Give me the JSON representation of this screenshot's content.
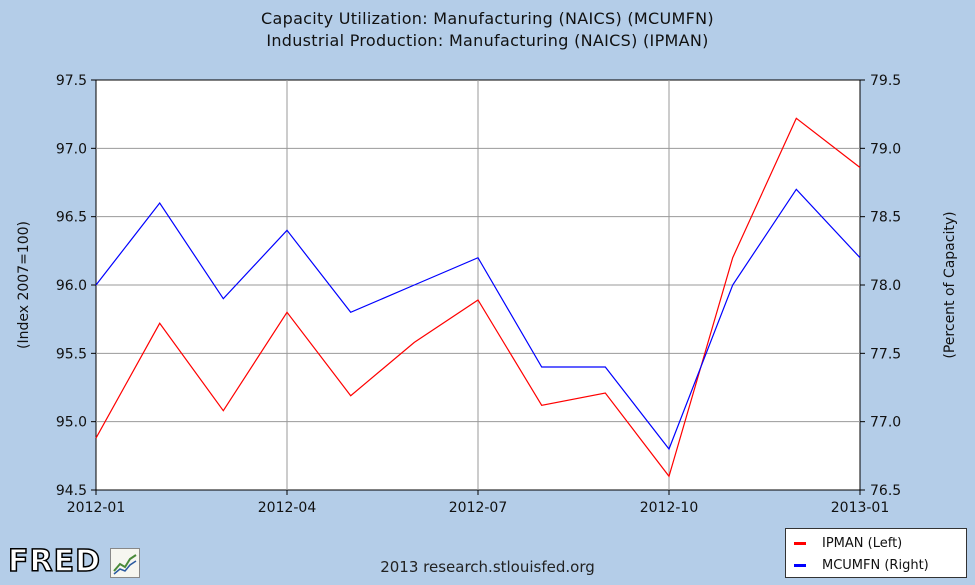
{
  "title_line1": "Capacity Utilization: Manufacturing (NAICS) (MCUMFN)",
  "title_line2": "Industrial Production: Manufacturing (NAICS) (IPMAN)",
  "footer": "2013 research.stlouisfed.org",
  "logo_text": "FRED",
  "colors": {
    "background": "#b4cde8",
    "plot": "#ffffff",
    "ipman": "#ff0000",
    "mcumfn": "#0000ff",
    "grid": "#999999"
  },
  "chart_data": {
    "type": "line",
    "title": "Capacity Utilization: Manufacturing (NAICS) (MCUMFN) / Industrial Production: Manufacturing (NAICS) (IPMAN)",
    "grid": true,
    "legend_position": "bottom-right",
    "x": [
      "2012-01",
      "2012-02",
      "2012-03",
      "2012-04",
      "2012-05",
      "2012-06",
      "2012-07",
      "2012-08",
      "2012-09",
      "2012-10",
      "2012-11",
      "2012-12",
      "2013-01"
    ],
    "x_ticks": [
      "2012-01",
      "2012-04",
      "2012-07",
      "2012-10",
      "2013-01"
    ],
    "left_axis": {
      "label": "(Index 2007=100)",
      "range": [
        94.5,
        97.5
      ],
      "ticks": [
        "94.5",
        "95.0",
        "95.5",
        "96.0",
        "96.5",
        "97.0",
        "97.5"
      ]
    },
    "right_axis": {
      "label": "(Percent of Capacity)",
      "range": [
        76.5,
        79.5
      ],
      "ticks": [
        "76.5",
        "77.0",
        "77.5",
        "78.0",
        "78.5",
        "79.0",
        "79.5"
      ]
    },
    "series": [
      {
        "name": "IPMAN (Left)",
        "axis": "left",
        "color": "#ff0000",
        "values": [
          94.88,
          95.72,
          95.08,
          95.8,
          95.19,
          95.58,
          95.89,
          95.12,
          95.21,
          94.6,
          96.2,
          97.22,
          96.86
        ]
      },
      {
        "name": "MCUMFN (Right)",
        "axis": "right",
        "color": "#0000ff",
        "values": [
          78.0,
          78.6,
          77.9,
          78.4,
          77.8,
          78.0,
          78.2,
          77.4,
          77.4,
          76.8,
          78.0,
          78.7,
          78.2
        ]
      }
    ]
  }
}
